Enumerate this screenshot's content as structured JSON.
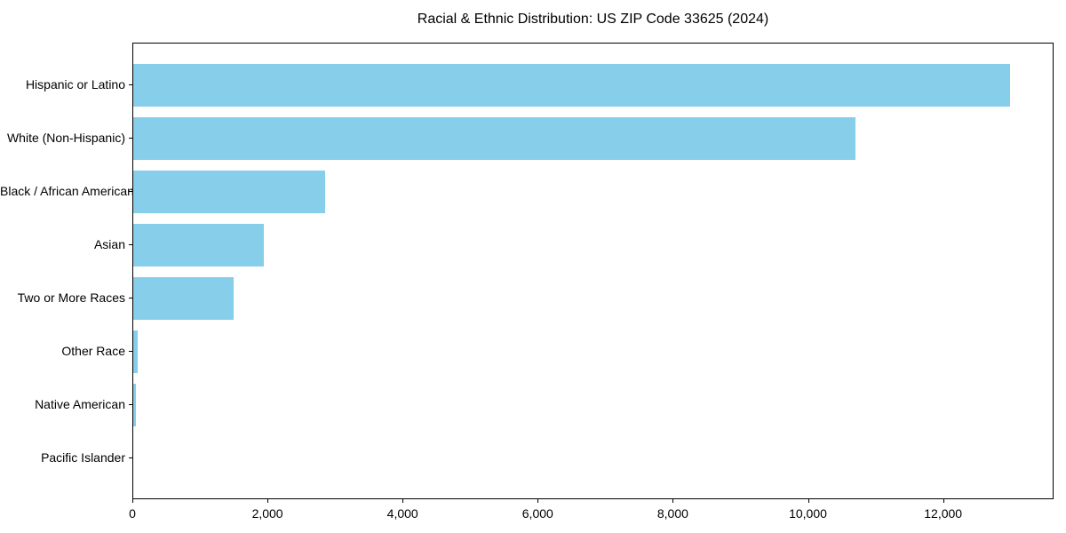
{
  "chart_data": {
    "type": "bar",
    "orientation": "horizontal",
    "title": "Racial & Ethnic Distribution: US ZIP Code 33625 (2024)",
    "categories": [
      "Hispanic or Latino",
      "White (Non-Hispanic)",
      "Black / African American",
      "Asian",
      "Two or More Races",
      "Other Race",
      "Native American",
      "Pacific Islander"
    ],
    "values": [
      12980,
      10685,
      2845,
      1930,
      1480,
      65,
      45,
      0
    ],
    "xlabel": "",
    "ylabel": "",
    "xlim": [
      0,
      13635
    ],
    "xticks": [
      0,
      2000,
      4000,
      6000,
      8000,
      10000,
      12000
    ],
    "xtick_labels": [
      "0",
      "2,000",
      "4,000",
      "6,000",
      "8,000",
      "10,000",
      "12,000"
    ],
    "bar_color": "#87CEEB",
    "background_color": "#FFFFFF",
    "spine_color": "#000000",
    "text_color": "#000000",
    "grid": false,
    "legend": null
  }
}
